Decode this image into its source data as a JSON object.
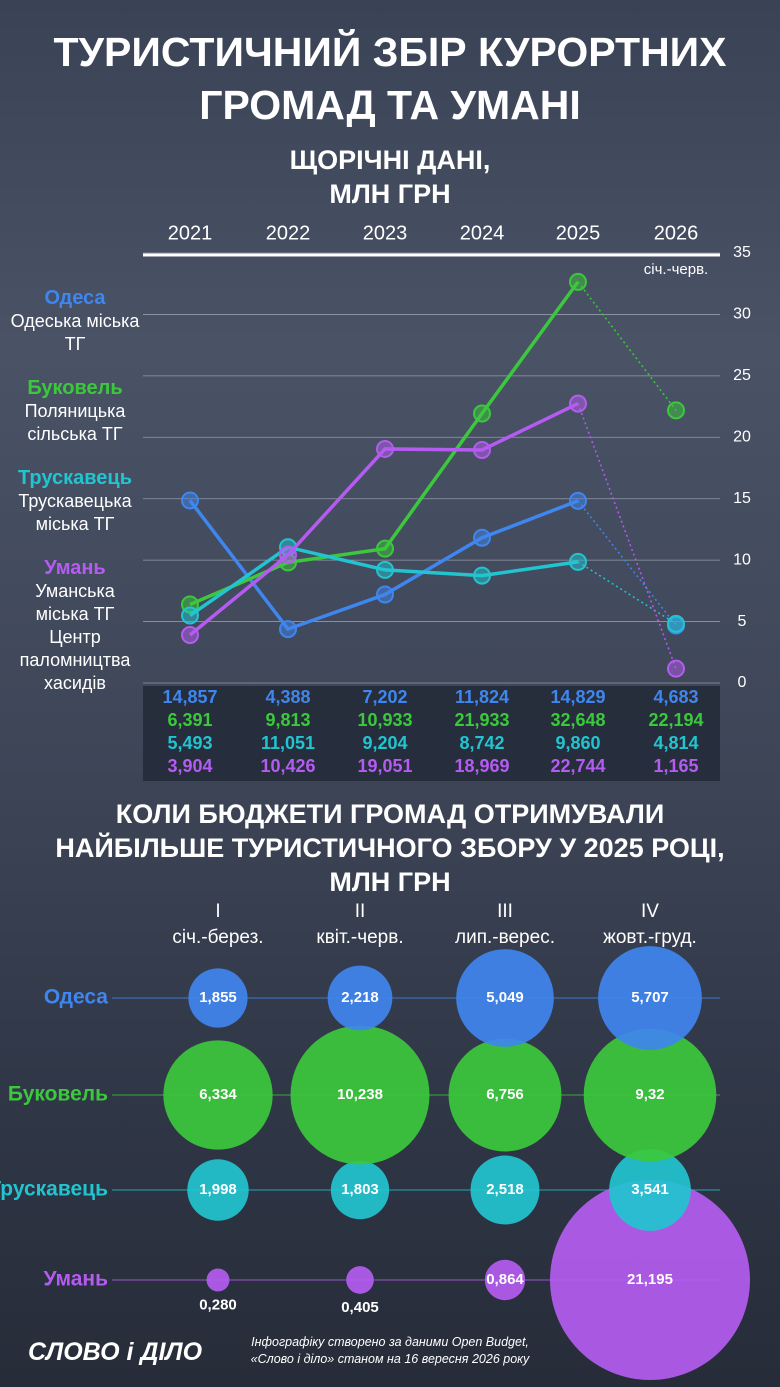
{
  "title": "Туристичний збір курортних громад та Умані",
  "chart_data": [
    {
      "type": "line",
      "title": "Щорічні дані, млн грн",
      "categories": [
        "2021",
        "2022",
        "2023",
        "2024",
        "2025",
        "2026"
      ],
      "category_sublabels": [
        null,
        null,
        null,
        null,
        null,
        "січ.-черв."
      ],
      "ylim": [
        0,
        35
      ],
      "yticks": [
        0,
        5,
        10,
        15,
        20,
        25,
        30,
        35
      ],
      "grid": true,
      "y_axis_side": "right",
      "dotted_last_segment": true,
      "series": [
        {
          "name": "Одеса",
          "subtitle": "Одеська міська ТГ",
          "color": "#3f86ee",
          "values": [
            14.857,
            4.388,
            7.202,
            11.824,
            14.829,
            4.683
          ],
          "value_labels": [
            "14,857",
            "4,388",
            "7,202",
            "11,824",
            "14,829",
            "4,683"
          ]
        },
        {
          "name": "Буковель",
          "subtitle": "Поляницька сільська ТГ",
          "color": "#3cc83c",
          "values": [
            6.391,
            9.813,
            10.933,
            21.933,
            32.648,
            22.194
          ],
          "value_labels": [
            "6,391",
            "9,813",
            "10,933",
            "21,933",
            "32,648",
            "22,194"
          ]
        },
        {
          "name": "Трускавець",
          "subtitle": "Трускавецька міська ТГ",
          "color": "#22c4d0",
          "values": [
            5.493,
            11.051,
            9.204,
            8.742,
            9.86,
            4.814
          ],
          "value_labels": [
            "5,493",
            "11,051",
            "9,204",
            "8,742",
            "9,860",
            "4,814"
          ]
        },
        {
          "name": "Умань",
          "subtitle": "Уманська міська ТГ Центр паломництва хасидів",
          "color": "#b45cf0",
          "values": [
            3.904,
            10.426,
            19.051,
            18.969,
            22.744,
            1.165
          ],
          "value_labels": [
            "3,904",
            "10,426",
            "19,051",
            "18,969",
            "22,744",
            "1,165"
          ]
        }
      ]
    },
    {
      "type": "bubble",
      "title": "Коли бюджети громад отримували найбільше туристичного збору у 2025 році, млн грн",
      "categories": [
        "I",
        "II",
        "III",
        "IV"
      ],
      "category_sublabels": [
        "січ.-берез.",
        "квіт.-черв.",
        "лип.-верес.",
        "жовт.-груд."
      ],
      "series": [
        {
          "name": "Одеса",
          "color": "#3f86ee",
          "values": [
            1.855,
            2.218,
            5.049,
            5.707
          ],
          "value_labels": [
            "1,855",
            "2,218",
            "5,049",
            "5,707"
          ]
        },
        {
          "name": "Буковель",
          "color": "#3cc83c",
          "values": [
            6.334,
            10.238,
            6.756,
            9.32
          ],
          "value_labels": [
            "6,334",
            "10,238",
            "6,756",
            "9,32"
          ]
        },
        {
          "name": "Трускавець",
          "color": "#22c4d0",
          "values": [
            1.998,
            1.803,
            2.518,
            3.541
          ],
          "value_labels": [
            "1,998",
            "1,803",
            "2,518",
            "3,541"
          ]
        },
        {
          "name": "Умань",
          "color": "#b45cf0",
          "values": [
            0.28,
            0.405,
            0.864,
            21.195
          ],
          "value_labels": [
            "0,280",
            "0,405",
            "0,864",
            "21,195"
          ]
        }
      ]
    }
  ],
  "logo": "СЛОВО і ДІЛО",
  "source": "Інфографіку створено за даними Open Budget, «Слово і діло» станом на 16 вересня 2026 року"
}
